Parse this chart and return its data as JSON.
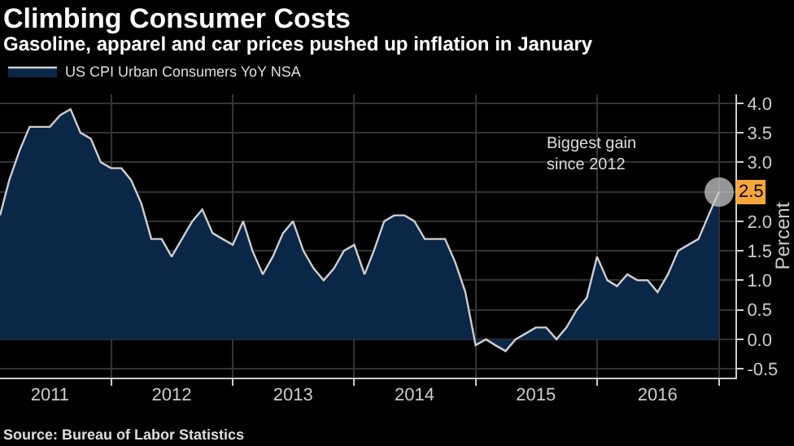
{
  "chart_data": {
    "type": "area",
    "title": "Climbing Consumer Costs",
    "subtitle": "Gasoline, apparel and car prices pushed up inflation in January",
    "ylabel": "Percent",
    "x": [
      "2011-02",
      "2011-03",
      "2011-04",
      "2011-05",
      "2011-06",
      "2011-07",
      "2011-08",
      "2011-09",
      "2011-10",
      "2011-11",
      "2011-12",
      "2012-01",
      "2012-02",
      "2012-03",
      "2012-04",
      "2012-05",
      "2012-06",
      "2012-07",
      "2012-08",
      "2012-09",
      "2012-10",
      "2012-11",
      "2012-12",
      "2013-01",
      "2013-02",
      "2013-03",
      "2013-04",
      "2013-05",
      "2013-06",
      "2013-07",
      "2013-08",
      "2013-09",
      "2013-10",
      "2013-11",
      "2013-12",
      "2014-01",
      "2014-02",
      "2014-03",
      "2014-04",
      "2014-05",
      "2014-06",
      "2014-07",
      "2014-08",
      "2014-09",
      "2014-10",
      "2014-11",
      "2014-12",
      "2015-01",
      "2015-02",
      "2015-03",
      "2015-04",
      "2015-05",
      "2015-06",
      "2015-07",
      "2015-08",
      "2015-09",
      "2015-10",
      "2015-11",
      "2015-12",
      "2016-01",
      "2016-02",
      "2016-03",
      "2016-04",
      "2016-05",
      "2016-06",
      "2016-07",
      "2016-08",
      "2016-09",
      "2016-10",
      "2016-11",
      "2016-12",
      "2017-01"
    ],
    "series": [
      {
        "name": "US CPI Urban Consumers YoY NSA",
        "color": "#0b2748",
        "values": [
          2.1,
          2.7,
          3.2,
          3.6,
          3.6,
          3.6,
          3.8,
          3.9,
          3.5,
          3.4,
          3.0,
          2.9,
          2.9,
          2.7,
          2.3,
          1.7,
          1.7,
          1.4,
          1.7,
          2.0,
          2.2,
          1.8,
          1.7,
          1.6,
          2.0,
          1.5,
          1.1,
          1.4,
          1.8,
          2.0,
          1.5,
          1.2,
          1.0,
          1.2,
          1.5,
          1.6,
          1.1,
          1.5,
          2.0,
          2.1,
          2.1,
          2.0,
          1.7,
          1.7,
          1.7,
          1.3,
          0.8,
          -0.1,
          0.0,
          -0.1,
          -0.2,
          0.0,
          0.1,
          0.2,
          0.2,
          0.0,
          0.2,
          0.5,
          0.7,
          1.4,
          1.0,
          0.9,
          1.1,
          1.0,
          1.0,
          0.8,
          1.1,
          1.5,
          1.6,
          1.7,
          2.1,
          2.5
        ],
        "value_labels": [
          null,
          null,
          null,
          null,
          null,
          null,
          null,
          null,
          null,
          null,
          null,
          null,
          null,
          null,
          null,
          null,
          null,
          null,
          null,
          null,
          null,
          null,
          null,
          null,
          null,
          null,
          null,
          null,
          null,
          null,
          null,
          null,
          null,
          null,
          null,
          null,
          null,
          null,
          null,
          null,
          null,
          null,
          null,
          null,
          null,
          null,
          null,
          null,
          null,
          null,
          null,
          null,
          null,
          null,
          null,
          null,
          null,
          null,
          null,
          null,
          null,
          null,
          null,
          null,
          null,
          null,
          null,
          null,
          null,
          null,
          null,
          "2.5"
        ]
      }
    ],
    "xlim": [
      "2011-02-01",
      "2017-02-20"
    ],
    "xticks": [
      {
        "value": "2011-07-01",
        "label": "2011"
      },
      {
        "value": "2012-07-01",
        "label": "2012"
      },
      {
        "value": "2013-07-01",
        "label": "2013"
      },
      {
        "value": "2014-07-01",
        "label": "2014"
      },
      {
        "value": "2015-07-01",
        "label": "2015"
      },
      {
        "value": "2016-07-01",
        "label": "2016"
      },
      {
        "value": "2012-01-01",
        "label": null
      },
      {
        "value": "2013-01-01",
        "label": null
      },
      {
        "value": "2014-01-01",
        "label": null
      },
      {
        "value": "2015-01-01",
        "label": null
      },
      {
        "value": "2016-01-01",
        "label": null
      },
      {
        "value": "2017-01-01",
        "label": null
      }
    ],
    "ylim": [
      -0.65,
      4.15
    ],
    "yticks": [
      {
        "value": -0.5,
        "label": "-0.5"
      },
      {
        "value": 0,
        "label": "0.0"
      },
      {
        "value": 0.5,
        "label": "0.5"
      },
      {
        "value": 1,
        "label": "1.0"
      },
      {
        "value": 1.5,
        "label": "1.5"
      },
      {
        "value": 2,
        "label": "2.0"
      },
      {
        "value": 2.5,
        "label": null
      },
      {
        "value": 3,
        "label": "3.0"
      },
      {
        "value": 3.5,
        "label": "3.5"
      },
      {
        "value": 4,
        "label": "4.0"
      }
    ],
    "grid": true,
    "legend": "top left",
    "marker": "none",
    "annotations": [
      "Biggest gain since 2012",
      "Source: Bureau of Labor Statistics"
    ]
  }
}
